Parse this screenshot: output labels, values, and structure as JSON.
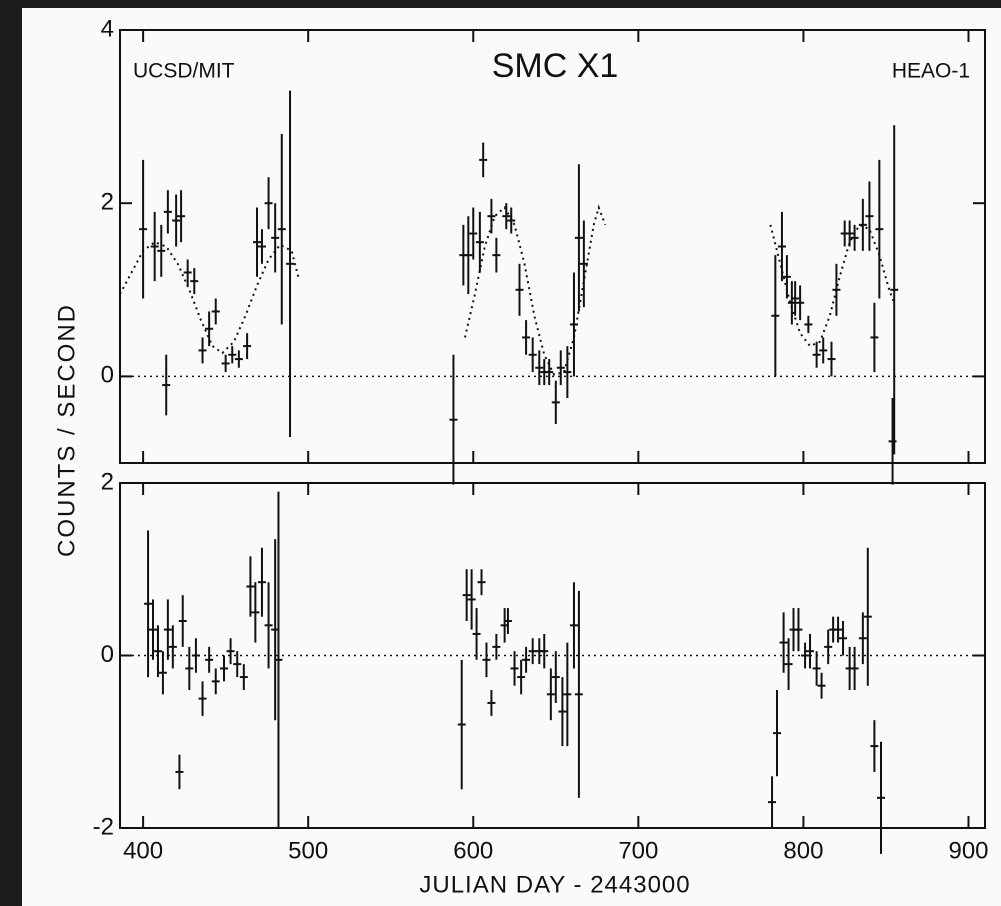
{
  "chart_data": [
    {
      "type": "errorbar",
      "title": "SMC X1",
      "annotations": [
        "UCSD/MIT",
        "HEAO-1"
      ],
      "ylabel": "COUNTS / SECOND",
      "xlim": [
        386,
        910
      ],
      "ylim": [
        -1,
        4
      ],
      "yticks": [
        0,
        2,
        4
      ],
      "reference_line": 0,
      "x": [
        400,
        407,
        411,
        415,
        414,
        420,
        423,
        427,
        431,
        436,
        440,
        444,
        450,
        454,
        458,
        463,
        469,
        472,
        476,
        480,
        484,
        489,
        588,
        594,
        597,
        600,
        604,
        606,
        611,
        614,
        620,
        623,
        628,
        632,
        636,
        640,
        643,
        646,
        650,
        653,
        657,
        661,
        664,
        667,
        783,
        787,
        790,
        793,
        795,
        798,
        803,
        808,
        812,
        817,
        820,
        825,
        828,
        831,
        836,
        840,
        843,
        846,
        854,
        855
      ],
      "values": [
        1.7,
        1.5,
        1.45,
        1.9,
        -0.1,
        1.8,
        1.85,
        1.2,
        1.1,
        0.3,
        0.55,
        0.75,
        0.15,
        0.25,
        0.2,
        0.35,
        1.55,
        1.5,
        2.0,
        1.6,
        1.7,
        1.3,
        -0.5,
        1.4,
        1.4,
        1.65,
        1.55,
        2.5,
        1.85,
        1.4,
        1.85,
        1.8,
        1.0,
        0.45,
        0.25,
        0.1,
        0.05,
        0.05,
        -0.3,
        0.1,
        0.05,
        0.6,
        1.6,
        1.3,
        0.7,
        1.5,
        1.15,
        0.85,
        0.9,
        0.85,
        0.6,
        0.25,
        0.3,
        0.2,
        1.0,
        1.65,
        1.65,
        1.6,
        1.75,
        1.85,
        0.45,
        1.7,
        -0.75,
        1.0
      ],
      "errors": [
        0.8,
        0.4,
        0.3,
        0.25,
        0.35,
        0.3,
        0.3,
        0.15,
        0.15,
        0.15,
        0.2,
        0.15,
        0.1,
        0.1,
        0.1,
        0.15,
        0.4,
        0.2,
        0.3,
        0.4,
        1.1,
        2.0,
        0.75,
        0.35,
        0.45,
        0.3,
        0.35,
        0.2,
        0.2,
        0.2,
        0.15,
        0.15,
        0.3,
        0.2,
        0.2,
        0.2,
        0.15,
        0.15,
        0.25,
        0.2,
        0.3,
        0.6,
        0.85,
        0.5,
        0.7,
        0.4,
        0.25,
        0.25,
        0.2,
        0.2,
        0.1,
        0.15,
        0.15,
        0.2,
        0.3,
        0.15,
        0.15,
        0.15,
        0.3,
        0.4,
        0.4,
        0.8,
        0.5,
        1.9
      ],
      "model": {
        "x": [
          386,
          393,
          400,
          407,
          414,
          421,
          428,
          435,
          442,
          448,
          455,
          462,
          469,
          476,
          483,
          490,
          494,
          null,
          595,
          601,
          607,
          613,
          619,
          625,
          631,
          637,
          643,
          649,
          655,
          661,
          667,
          673,
          676,
          680,
          null,
          780,
          786,
          792,
          798,
          804,
          810,
          816,
          822,
          828,
          834,
          840,
          846,
          852,
          855
        ],
        "values": [
          0.95,
          1.2,
          1.45,
          1.55,
          1.5,
          1.3,
          1.0,
          0.65,
          0.35,
          0.27,
          0.4,
          0.7,
          1.05,
          1.35,
          1.52,
          1.45,
          1.15,
          null,
          0.45,
          0.95,
          1.5,
          1.85,
          1.95,
          1.75,
          1.3,
          0.7,
          0.25,
          0.02,
          0.05,
          0.45,
          1.1,
          1.75,
          1.95,
          1.75,
          null,
          1.75,
          1.3,
          0.85,
          0.5,
          0.35,
          0.4,
          0.7,
          1.15,
          1.55,
          1.75,
          1.7,
          1.4,
          1.0,
          0.85
        ]
      }
    },
    {
      "type": "errorbar",
      "xlabel": "JULIAN DAY - 2443000",
      "xlim": [
        386,
        910
      ],
      "xticks": [
        400,
        500,
        600,
        700,
        800,
        900
      ],
      "ylim": [
        -2,
        2
      ],
      "yticks": [
        -2,
        0,
        2
      ],
      "reference_line": 0,
      "x": [
        403,
        406,
        409,
        412,
        415,
        418,
        422,
        424,
        428,
        432,
        436,
        440,
        444,
        449,
        453,
        457,
        461,
        465,
        468,
        472,
        476,
        480,
        482,
        593,
        596,
        599,
        602,
        605,
        608,
        611,
        614,
        619,
        621,
        625,
        629,
        632,
        636,
        640,
        643,
        647,
        650,
        654,
        657,
        661,
        664,
        781,
        784,
        788,
        791,
        794,
        797,
        801,
        804,
        808,
        811,
        815,
        818,
        821,
        824,
        828,
        831,
        836,
        839,
        843,
        847
      ],
      "values": [
        0.6,
        0.3,
        0.05,
        -0.2,
        0.3,
        0.1,
        -1.35,
        0.4,
        -0.15,
        0.0,
        -0.5,
        -0.05,
        -0.3,
        -0.15,
        0.05,
        -0.1,
        -0.25,
        0.8,
        0.5,
        0.85,
        0.35,
        0.3,
        -0.05,
        -0.8,
        0.7,
        0.65,
        0.25,
        0.85,
        -0.05,
        -0.55,
        0.1,
        0.35,
        0.4,
        -0.15,
        -0.25,
        -0.05,
        0.05,
        0.05,
        0.05,
        -0.45,
        -0.25,
        -0.65,
        -0.45,
        0.35,
        -0.45,
        -1.7,
        -0.9,
        0.15,
        -0.1,
        0.3,
        0.3,
        0.0,
        0.05,
        -0.15,
        -0.35,
        0.1,
        0.3,
        0.3,
        0.2,
        -0.15,
        -0.15,
        0.2,
        0.45,
        -1.05,
        -1.65
      ],
      "errors": [
        0.85,
        0.35,
        0.3,
        0.25,
        0.35,
        0.25,
        0.2,
        0.3,
        0.25,
        0.2,
        0.2,
        0.15,
        0.15,
        0.15,
        0.15,
        0.15,
        0.15,
        0.35,
        0.35,
        0.4,
        0.5,
        1.05,
        1.95,
        0.75,
        0.3,
        0.35,
        0.3,
        0.15,
        0.2,
        0.15,
        0.15,
        0.2,
        0.15,
        0.2,
        0.2,
        0.15,
        0.15,
        0.15,
        0.2,
        0.3,
        0.3,
        0.4,
        0.6,
        0.5,
        1.2,
        0.3,
        0.5,
        0.35,
        0.3,
        0.25,
        0.25,
        0.15,
        0.2,
        0.2,
        0.15,
        0.2,
        0.15,
        0.15,
        0.2,
        0.25,
        0.25,
        0.3,
        0.8,
        0.3,
        0.65
      ]
    }
  ]
}
